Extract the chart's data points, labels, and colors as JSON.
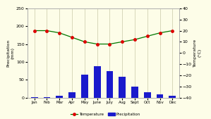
{
  "months": [
    "Jan",
    "Feb",
    "Mar",
    "Apr",
    "May",
    "June",
    "July",
    "Aug",
    "Sept",
    "Oct",
    "Nov",
    "Dec"
  ],
  "temperature": [
    20,
    20,
    18,
    14,
    10,
    8,
    8,
    10,
    12,
    15,
    18,
    20
  ],
  "precipitation": [
    2,
    2,
    5,
    15,
    65,
    88,
    75,
    58,
    30,
    15,
    10,
    5
  ],
  "bar_color": "#1a1acc",
  "line_color": "#007700",
  "marker_color": "#dd0000",
  "background_color": "#fdfde8",
  "grid_color": "#c8c8a8",
  "left_ylabel": "Precipitation\n(mm)",
  "right_ylabel": "Temperature\n(°C)",
  "ylim_left": [
    0,
    250
  ],
  "ylim_right": [
    -40,
    40
  ],
  "yticks_left": [
    0,
    50,
    100,
    150,
    200,
    250
  ],
  "yticks_right": [
    -40,
    -30,
    -20,
    -10,
    0,
    10,
    20,
    30,
    40
  ],
  "legend_temp": "Temperature",
  "legend_precip": "Precipitation"
}
